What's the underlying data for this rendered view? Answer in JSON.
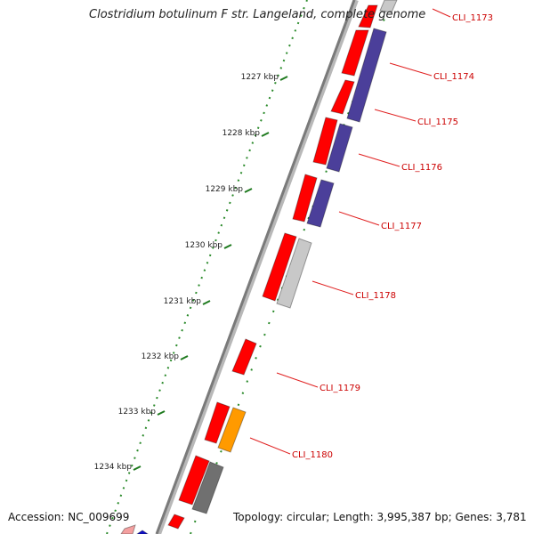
{
  "title": "Clostridium botulinum F str. Langeland, complete genome",
  "footer": {
    "accession": "Accession: NC_009699",
    "topology": "Topology: circular; Length: 3,995,387 bp; Genes: 3,781"
  },
  "colors": {
    "background": "#ffffff",
    "backbone": "#7a7a7a",
    "gene_label": "#cc0000",
    "gene_leader": "#e02020",
    "scale_tick": "#1e7a1e",
    "forward_cds": "#ff0000",
    "reverse_cds": "#4b3f9a",
    "light_gray": "#c8c8c8",
    "dark_gray": "#707070",
    "orange": "#ff9a00",
    "pink": "#f4a0a0",
    "blue": "#1010cc"
  },
  "scale_labels": [
    "1227 kbp",
    "1228 kbp",
    "1229 kbp",
    "1230 kbp",
    "1231 kbp",
    "1232 kbp",
    "1233 kbp",
    "1234 kbp"
  ],
  "gene_labels": [
    "CLI_1173",
    "CLI_1174",
    "CLI_1175",
    "CLI_1176",
    "CLI_1177",
    "CLI_1178",
    "CLI_1179",
    "CLI_1180"
  ]
}
